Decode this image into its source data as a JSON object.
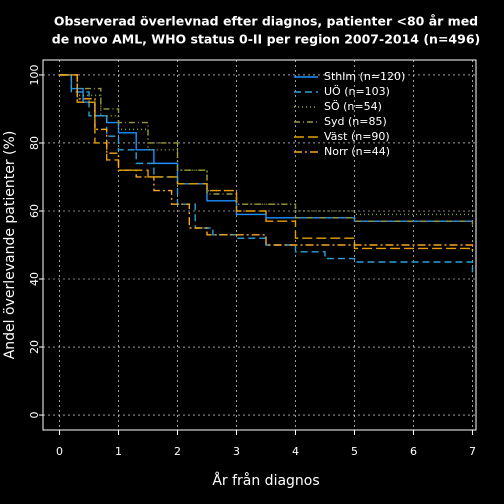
{
  "chart_data": {
    "type": "step",
    "title": [
      "Observerad överlevnad efter diagnos, patienter <80 år med",
      "de novo AML, WHO status 0-II per region 2007-2014 (n=496)"
    ],
    "x_label": "År från diagnos",
    "y_label": "Andel överlevande patienter (%)",
    "xlim": [
      -0.28,
      7.06
    ],
    "ylim": [
      -4.4,
      104.4
    ],
    "xticks": [
      0,
      1,
      2,
      3,
      4,
      5,
      6,
      7
    ],
    "yticks": [
      0,
      20,
      40,
      60,
      80,
      100
    ],
    "grid": true,
    "legend": "top-right",
    "series": [
      {
        "name": "Sthlm (n=120)",
        "color": "#1e90ff",
        "dash": "none",
        "x": [
          0,
          0.2,
          0.4,
          0.6,
          0.8,
          1,
          1.3,
          1.6,
          2,
          2.5,
          3,
          3.5,
          4,
          5,
          6,
          7
        ],
        "values": [
          100,
          96,
          92,
          88,
          86,
          83,
          78,
          74,
          68,
          63,
          59,
          58,
          58,
          57,
          57,
          57
        ]
      },
      {
        "name": "UÖ (n=103)",
        "color": "#2b9fd8",
        "dash": "7 4",
        "x": [
          0,
          0.2,
          0.5,
          0.8,
          1,
          1.3,
          1.6,
          2,
          2.3,
          2.6,
          3,
          3.5,
          4,
          4.5,
          5,
          6,
          7
        ],
        "values": [
          100,
          95,
          88,
          82,
          78,
          74,
          70,
          62,
          55,
          53,
          52,
          50,
          48,
          46,
          45,
          45,
          42
        ]
      },
      {
        "name": "SÖ (n=54)",
        "color": "#8fae3c",
        "dash": "1 3",
        "x": [
          0,
          0.3,
          0.7,
          1,
          1.5,
          2,
          2.5,
          3,
          4,
          5,
          7
        ],
        "values": [
          100,
          94,
          88,
          84,
          78,
          72,
          66,
          62,
          60,
          59,
          59
        ]
      },
      {
        "name": "Syd (n=85)",
        "color": "#9a9a3a",
        "dash": "6 3 1 3",
        "x": [
          0,
          0.3,
          0.7,
          1,
          1.5,
          2,
          2.5,
          3,
          4,
          5,
          7
        ],
        "values": [
          100,
          96,
          90,
          86,
          80,
          72,
          65,
          62,
          58,
          57,
          56
        ]
      },
      {
        "name": "Väst (n=90)",
        "color": "#e69f00",
        "dash": "10 4",
        "x": [
          0,
          0.3,
          0.6,
          0.8,
          1,
          1.5,
          2,
          2.5,
          3,
          3.5,
          4,
          5,
          7
        ],
        "values": [
          100,
          92,
          80,
          75,
          72,
          70,
          68,
          66,
          60,
          57,
          52,
          49,
          49
        ]
      },
      {
        "name": "Norr (n=44)",
        "color": "#f5a623",
        "dash": "8 3 2 3",
        "x": [
          0,
          0.3,
          0.6,
          0.8,
          1,
          1.3,
          1.6,
          1.9,
          2.2,
          2.5,
          3,
          3.5,
          7
        ],
        "values": [
          100,
          93,
          84,
          77,
          72,
          70,
          66,
          62,
          55,
          53,
          53,
          50,
          48
        ]
      }
    ]
  }
}
